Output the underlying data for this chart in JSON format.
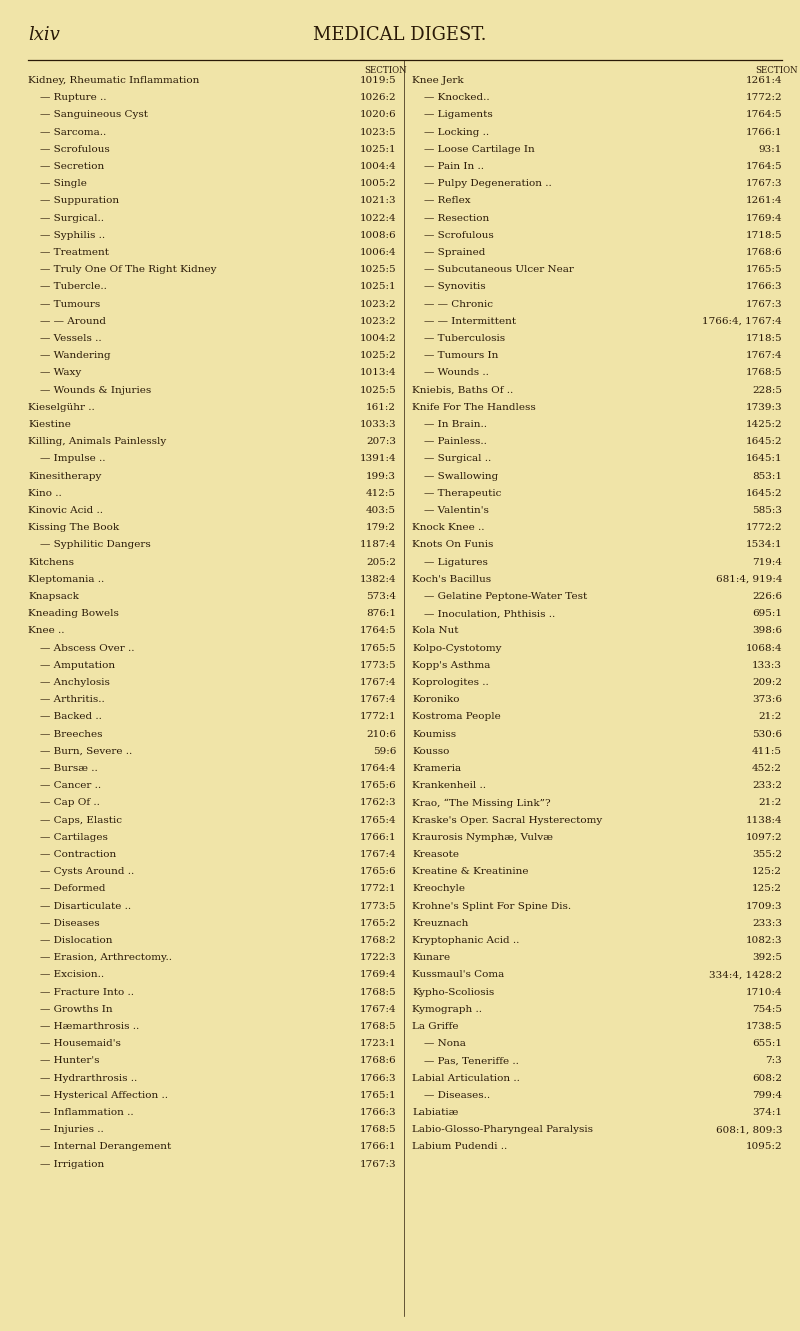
{
  "bg_color": "#f0e4a8",
  "text_color": "#2a1a08",
  "title_left": "lxiv",
  "title_center": "MEDICAL DIGEST.",
  "section_header": "SECTION",
  "left_col": [
    [
      "Kidney, Rheumatic Inflammation",
      "1019:5",
      false
    ],
    [
      "— Rupture ..",
      "1026:2",
      true
    ],
    [
      "— Sanguineous Cyst",
      "1020:6",
      true
    ],
    [
      "— Sarcoma..",
      "1023:5",
      true
    ],
    [
      "— Scrofulous",
      "1025:1",
      true
    ],
    [
      "— Secretion",
      "1004:4",
      true
    ],
    [
      "— Single",
      "1005:2",
      true
    ],
    [
      "— Suppuration",
      "1021:3",
      true
    ],
    [
      "— Surgical..",
      "1022:4",
      true
    ],
    [
      "— Syphilis ..",
      "1008:6",
      true
    ],
    [
      "— Treatment",
      "1006:4",
      true
    ],
    [
      "— Truly One Of The Right Kidney",
      "1025:5",
      true
    ],
    [
      "— Tubercle..",
      "1025:1",
      true
    ],
    [
      "— Tumours",
      "1023:2",
      true
    ],
    [
      "— — Around",
      "1023:2",
      true
    ],
    [
      "— Vessels ..",
      "1004:2",
      true
    ],
    [
      "— Wandering",
      "1025:2",
      true
    ],
    [
      "— Waxy",
      "1013:4",
      true
    ],
    [
      "— Wounds & Injuries",
      "1025:5",
      true
    ],
    [
      "Kieselgühr ..",
      "161:2",
      false
    ],
    [
      "Kiestine",
      "1033:3",
      false
    ],
    [
      "Killing, Animals Painlessly",
      "207:3",
      false
    ],
    [
      "— Impulse ..",
      "1391:4",
      true
    ],
    [
      "Kinesitherapy",
      "199:3",
      false
    ],
    [
      "Kino ..",
      "412:5",
      false
    ],
    [
      "Kinovic Acid ..",
      "403:5",
      false
    ],
    [
      "Kissing The Book",
      "179:2",
      false
    ],
    [
      "— Syphilitic Dangers",
      "1187:4",
      true
    ],
    [
      "Kitchens",
      "205:2",
      false
    ],
    [
      "Kleptomania ..",
      "1382:4",
      false
    ],
    [
      "Knapsack",
      "573:4",
      false
    ],
    [
      "Kneading Bowels",
      "876:1",
      false
    ],
    [
      "Knee ..",
      "1764:5",
      false
    ],
    [
      "— Abscess Over ..",
      "1765:5",
      true
    ],
    [
      "— Amputation",
      "1773:5",
      true
    ],
    [
      "— Anchylosis",
      "1767:4",
      true
    ],
    [
      "— Arthritis..",
      "1767:4",
      true
    ],
    [
      "— Backed ..",
      "1772:1",
      true
    ],
    [
      "— Breeches",
      "210:6",
      true
    ],
    [
      "— Burn, Severe ..",
      "59:6",
      true
    ],
    [
      "— Bursæ ..",
      "1764:4",
      true
    ],
    [
      "— Cancer ..",
      "1765:6",
      true
    ],
    [
      "— Cap Of ..",
      "1762:3",
      true
    ],
    [
      "— Caps, Elastic",
      "1765:4",
      true
    ],
    [
      "— Cartilages",
      "1766:1",
      true
    ],
    [
      "— Contraction",
      "1767:4",
      true
    ],
    [
      "— Cysts Around ..",
      "1765:6",
      true
    ],
    [
      "— Deformed",
      "1772:1",
      true
    ],
    [
      "— Disarticulate ..",
      "1773:5",
      true
    ],
    [
      "— Diseases",
      "1765:2",
      true
    ],
    [
      "— Dislocation",
      "1768:2",
      true
    ],
    [
      "— Erasion, Arthrectomy..",
      "1722:3",
      true
    ],
    [
      "— Excision..",
      "1769:4",
      true
    ],
    [
      "— Fracture Into ..",
      "1768:5",
      true
    ],
    [
      "— Growths In",
      "1767:4",
      true
    ],
    [
      "— Hæmarthrosis ..",
      "1768:5",
      true
    ],
    [
      "— Housemaid's",
      "1723:1",
      true
    ],
    [
      "— Hunter's",
      "1768:6",
      true
    ],
    [
      "— Hydrarthrosis ..",
      "1766:3",
      true
    ],
    [
      "— Hysterical Affection ..",
      "1765:1",
      true
    ],
    [
      "— Inflammation ..",
      "1766:3",
      true
    ],
    [
      "— Injuries ..",
      "1768:5",
      true
    ],
    [
      "— Internal Derangement",
      "1766:1",
      true
    ],
    [
      "— Irrigation",
      "1767:3",
      true
    ]
  ],
  "right_col": [
    [
      "Knee Jerk",
      "1261:4",
      false
    ],
    [
      "— Knocked..",
      "1772:2",
      true
    ],
    [
      "— Ligaments",
      "1764:5",
      true
    ],
    [
      "— Locking ..",
      "1766:1",
      true
    ],
    [
      "— Loose Cartilage In",
      "93:1",
      true
    ],
    [
      "— Pain In ..",
      "1764:5",
      true
    ],
    [
      "— Pulpy Degeneration ..",
      "1767:3",
      true
    ],
    [
      "— Reflex",
      "1261:4",
      true
    ],
    [
      "— Resection",
      "1769:4",
      true
    ],
    [
      "— Scrofulous",
      "1718:5",
      true
    ],
    [
      "— Sprained",
      "1768:6",
      true
    ],
    [
      "— Subcutaneous Ulcer Near",
      "1765:5",
      true
    ],
    [
      "— Synovitis",
      "1766:3",
      true
    ],
    [
      "— — Chronic",
      "1767:3",
      true
    ],
    [
      "— — Intermittent",
      "1766:4, 1767:4",
      true
    ],
    [
      "— Tuberculosis",
      "1718:5",
      true
    ],
    [
      "— Tumours In",
      "1767:4",
      true
    ],
    [
      "— Wounds ..",
      "1768:5",
      true
    ],
    [
      "Kniebis, Baths Of ..",
      "228:5",
      false
    ],
    [
      "Knife For The Handless",
      "1739:3",
      false
    ],
    [
      "— In Brain..",
      "1425:2",
      true
    ],
    [
      "— Painless..",
      "1645:2",
      true
    ],
    [
      "— Surgical ..",
      "1645:1",
      true
    ],
    [
      "— Swallowing",
      "853:1",
      true
    ],
    [
      "— Therapeutic",
      "1645:2",
      true
    ],
    [
      "— Valentin's",
      "585:3",
      true
    ],
    [
      "Knock Knee ..",
      "1772:2",
      false
    ],
    [
      "Knots On Funis",
      "1534:1",
      false
    ],
    [
      "— Ligatures",
      "719:4",
      true
    ],
    [
      "Koch's Bacillus",
      "681:4, 919:4",
      false
    ],
    [
      "— Gelatine Peptone-Water Test",
      "226:6",
      true
    ],
    [
      "— Inoculation, Phthisis ..",
      "695:1",
      true
    ],
    [
      "Kola Nut",
      "398:6",
      false
    ],
    [
      "Kolpo-Cystotomy",
      "1068:4",
      false
    ],
    [
      "Kopp's Asthma",
      "133:3",
      false
    ],
    [
      "Koprologites ..",
      "209:2",
      false
    ],
    [
      "Koroniko",
      "373:6",
      false
    ],
    [
      "Kostroma People",
      "21:2",
      false
    ],
    [
      "Koumiss",
      "530:6",
      false
    ],
    [
      "Kousso",
      "411:5",
      false
    ],
    [
      "Krameria",
      "452:2",
      false
    ],
    [
      "Krankenheil ..",
      "233:2",
      false
    ],
    [
      "Krao, “The Missing Link”?",
      "21:2",
      false
    ],
    [
      "Kraske's Oper. Sacral Hysterectomy",
      "1138:4",
      false
    ],
    [
      "Kraurosis Nymphæ, Vulvæ",
      "1097:2",
      false
    ],
    [
      "Kreasote",
      "355:2",
      false
    ],
    [
      "Kreatine & Kreatinine",
      "125:2",
      false
    ],
    [
      "Kreochyle",
      "125:2",
      false
    ],
    [
      "Krohne's Splint For Spine Dis.",
      "1709:3",
      false
    ],
    [
      "Kreuznach",
      "233:3",
      false
    ],
    [
      "Kryptophanic Acid ..",
      "1082:3",
      false
    ],
    [
      "Kunare",
      "392:5",
      false
    ],
    [
      "Kussmaul's Coma",
      "334:4, 1428:2",
      false
    ],
    [
      "Kypho-Scoliosis",
      "1710:4",
      false
    ],
    [
      "Kymograph ..",
      "754:5",
      false
    ],
    [
      "La Griffe",
      "1738:5",
      false
    ],
    [
      "— Nona",
      "655:1",
      true
    ],
    [
      "— Pas, Teneriffe ..",
      "7:3",
      true
    ],
    [
      "Labial Articulation ..",
      "608:2",
      false
    ],
    [
      "— Diseases..",
      "799:4",
      true
    ],
    [
      "Labiatiæ",
      "374:1",
      false
    ],
    [
      "Labio-Glosso-Pharyngeal Paralysis",
      "608:1, 809:3",
      false
    ],
    [
      "Labium Pudendi ..",
      "1095:2",
      false
    ]
  ]
}
